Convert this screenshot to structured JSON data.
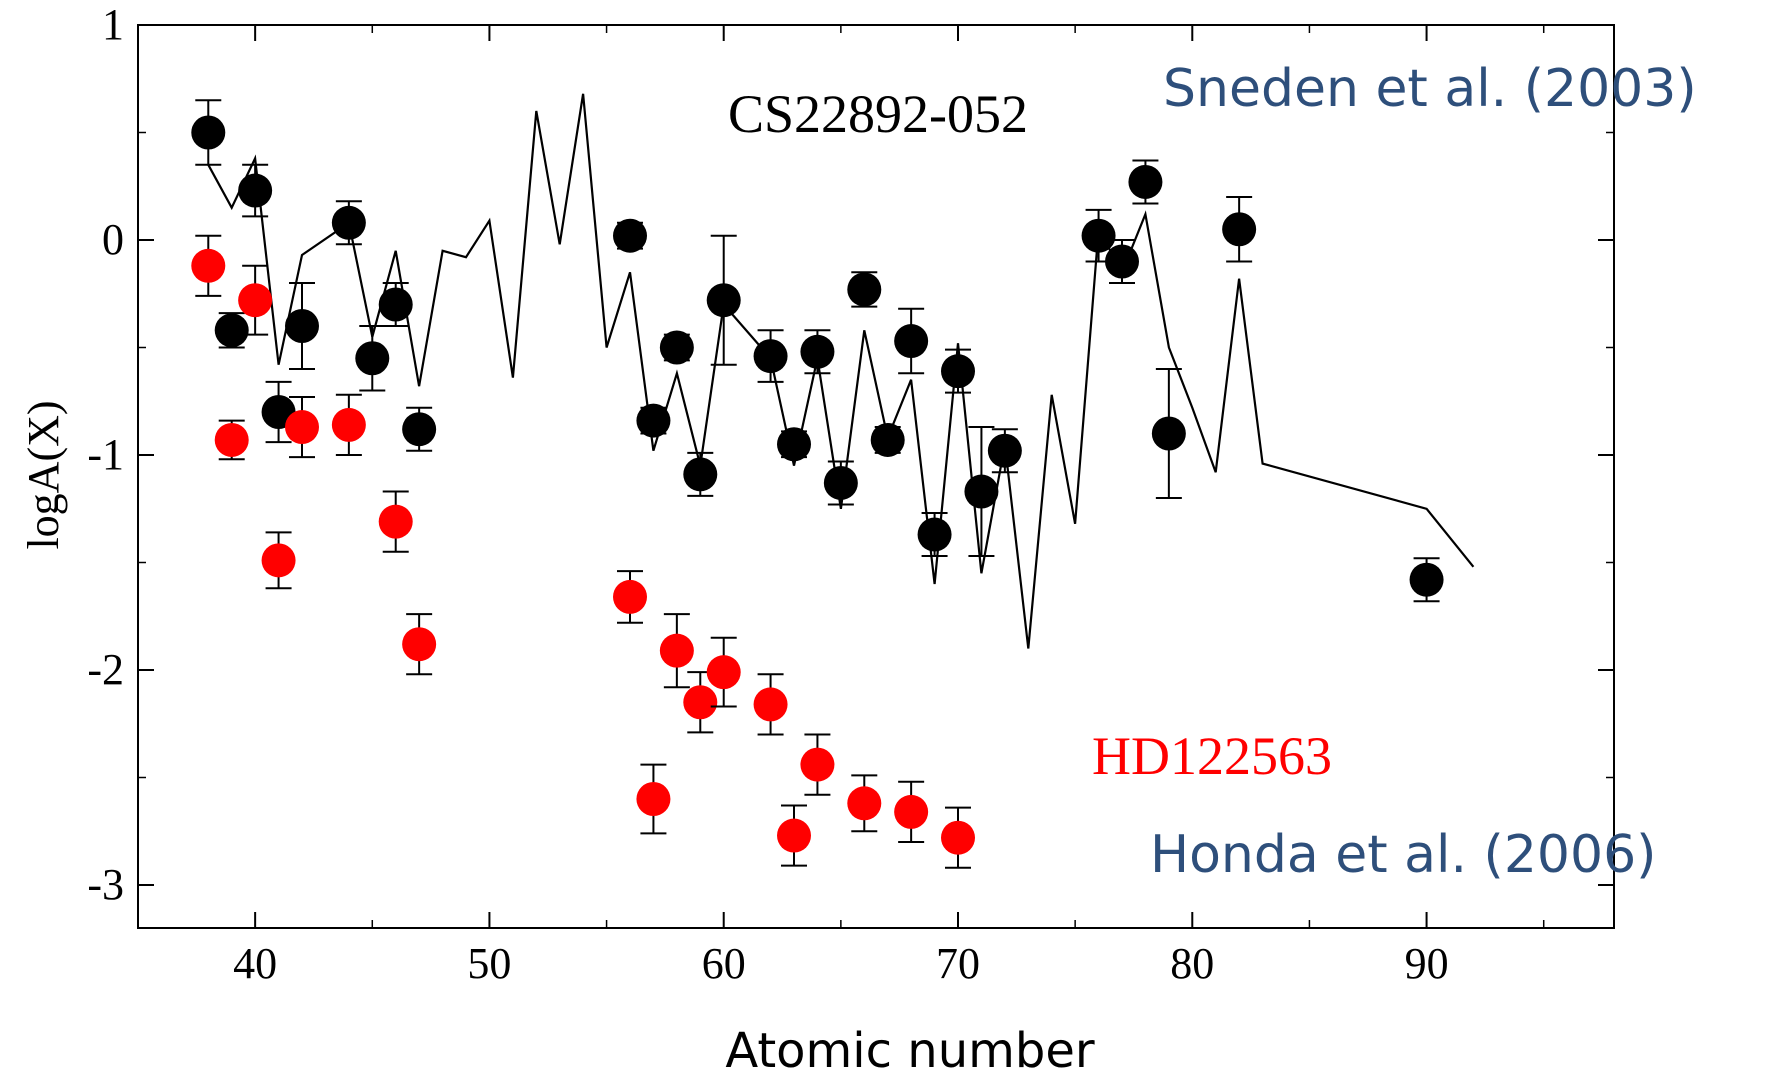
{
  "chart_data": {
    "type": "scatter",
    "ylabel": "logA(X)",
    "xlabel": "Atomic number",
    "xlim": [
      35,
      98
    ],
    "ylim": [
      -3.2,
      1.0
    ],
    "x_ticks": [
      40,
      50,
      60,
      70,
      80,
      90
    ],
    "y_ticks": [
      1,
      0,
      -1,
      -2,
      -3
    ],
    "y_tick_labels": [
      "1",
      "0",
      "-1",
      "-2",
      "-3"
    ],
    "grid": false,
    "annotations": {
      "star_black": "CS22892-052",
      "ref_black": "Sneden et al. (2003)",
      "star_red": "HD122563",
      "ref_red": "Honda et al. (2006)"
    },
    "series": [
      {
        "color": "#000000",
        "marker": "circle",
        "points": [
          {
            "x": 38,
            "y": 0.5,
            "err": 0.15
          },
          {
            "x": 39,
            "y": -0.42,
            "err": 0.08
          },
          {
            "x": 40,
            "y": 0.23,
            "err": 0.12
          },
          {
            "x": 41,
            "y": -0.8,
            "err": 0.14
          },
          {
            "x": 42,
            "y": -0.4,
            "err": 0.2
          },
          {
            "x": 44,
            "y": 0.08,
            "err": 0.1
          },
          {
            "x": 45,
            "y": -0.55,
            "err": 0.15
          },
          {
            "x": 46,
            "y": -0.3,
            "err": 0.1
          },
          {
            "x": 47,
            "y": -0.88,
            "err": 0.1
          },
          {
            "x": 56,
            "y": 0.02,
            "err": 0.06
          },
          {
            "x": 57,
            "y": -0.84,
            "err": 0.06
          },
          {
            "x": 58,
            "y": -0.5,
            "err": 0.06
          },
          {
            "x": 59,
            "y": -1.09,
            "err": 0.1
          },
          {
            "x": 60,
            "y": -0.28,
            "err": 0.3
          },
          {
            "x": 62,
            "y": -0.54,
            "err": 0.12
          },
          {
            "x": 63,
            "y": -0.95,
            "err": 0.06
          },
          {
            "x": 64,
            "y": -0.52,
            "err": 0.1
          },
          {
            "x": 65,
            "y": -1.13,
            "err": 0.1
          },
          {
            "x": 66,
            "y": -0.23,
            "err": 0.08
          },
          {
            "x": 67,
            "y": -0.93,
            "err": 0.06
          },
          {
            "x": 68,
            "y": -0.47,
            "err": 0.15
          },
          {
            "x": 69,
            "y": -1.37,
            "err": 0.1
          },
          {
            "x": 70,
            "y": -0.61,
            "err": 0.1
          },
          {
            "x": 71,
            "y": -1.17,
            "err": 0.3
          },
          {
            "x": 72,
            "y": -0.98,
            "err": 0.1
          },
          {
            "x": 76,
            "y": 0.02,
            "err": 0.12
          },
          {
            "x": 77,
            "y": -0.1,
            "err": 0.1
          },
          {
            "x": 78,
            "y": 0.27,
            "err": 0.1
          },
          {
            "x": 79,
            "y": -0.9,
            "err": 0.3
          },
          {
            "x": 82,
            "y": 0.05,
            "err": 0.15
          },
          {
            "x": 90,
            "y": -1.58,
            "err": 0.1
          }
        ]
      },
      {
        "color": "#ff0000",
        "marker": "circle",
        "points": [
          {
            "x": 38,
            "y": -0.12,
            "err": 0.14
          },
          {
            "x": 39,
            "y": -0.93,
            "err": 0.09
          },
          {
            "x": 40,
            "y": -0.28,
            "err": 0.16
          },
          {
            "x": 41,
            "y": -1.49,
            "err": 0.13
          },
          {
            "x": 42,
            "y": -0.87,
            "err": 0.14
          },
          {
            "x": 44,
            "y": -0.86,
            "err": 0.14
          },
          {
            "x": 46,
            "y": -1.31,
            "err": 0.14
          },
          {
            "x": 47,
            "y": -1.88,
            "err": 0.14
          },
          {
            "x": 56,
            "y": -1.66,
            "err": 0.12
          },
          {
            "x": 57,
            "y": -2.6,
            "err": 0.16
          },
          {
            "x": 58,
            "y": -1.91,
            "err": 0.17
          },
          {
            "x": 59,
            "y": -2.15,
            "err": 0.14
          },
          {
            "x": 60,
            "y": -2.01,
            "err": 0.16
          },
          {
            "x": 62,
            "y": -2.16,
            "err": 0.14
          },
          {
            "x": 63,
            "y": -2.77,
            "err": 0.14
          },
          {
            "x": 64,
            "y": -2.44,
            "err": 0.14
          },
          {
            "x": 66,
            "y": -2.62,
            "err": 0.13
          },
          {
            "x": 68,
            "y": -2.66,
            "err": 0.14
          },
          {
            "x": 70,
            "y": -2.78,
            "err": 0.14
          }
        ]
      },
      {
        "color": "#000000",
        "marker": "none",
        "line": true,
        "x": [
          38,
          39,
          40,
          41,
          42,
          44,
          45,
          46,
          47,
          48,
          49,
          50,
          51,
          52,
          53,
          54,
          55,
          56,
          57,
          58,
          59,
          60,
          62,
          63,
          64,
          65,
          66,
          67,
          68,
          69,
          70,
          71,
          72,
          73,
          74,
          75,
          76,
          77,
          78,
          79,
          80,
          81,
          82,
          83,
          90,
          92
        ],
        "y": [
          0.35,
          0.15,
          0.38,
          -0.58,
          -0.07,
          0.08,
          -0.45,
          -0.05,
          -0.68,
          -0.05,
          -0.08,
          0.09,
          -0.64,
          0.6,
          -0.02,
          0.68,
          -0.5,
          -0.15,
          -0.98,
          -0.62,
          -1.05,
          -0.3,
          -0.55,
          -1.05,
          -0.55,
          -1.25,
          -0.42,
          -0.92,
          -0.65,
          -1.6,
          -0.48,
          -1.55,
          -0.95,
          -1.9,
          -0.72,
          -1.32,
          0.05,
          -0.15,
          0.12,
          -0.5,
          -0.78,
          -1.08,
          -0.18,
          -1.04,
          -1.25,
          -1.52
        ]
      }
    ]
  }
}
